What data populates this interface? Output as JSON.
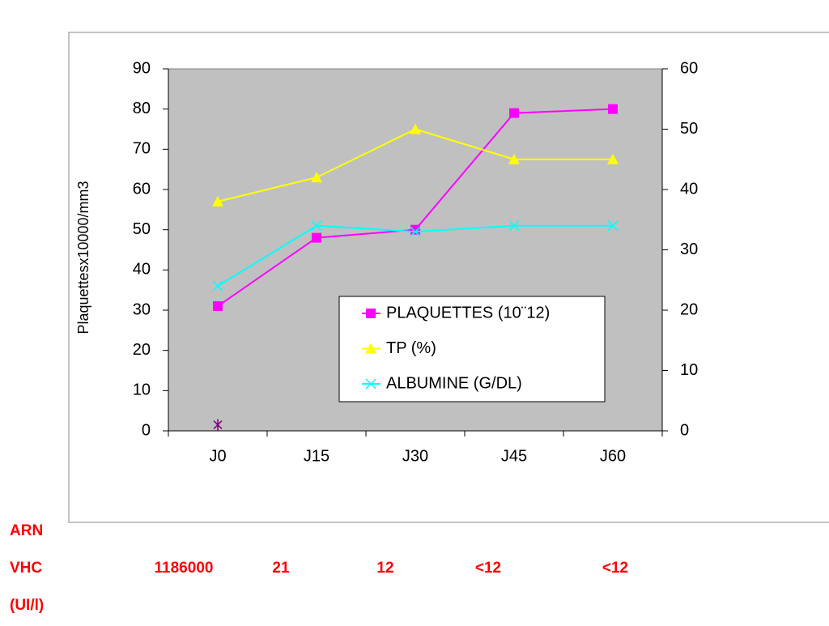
{
  "chart_data": {
    "type": "line",
    "y_label": "Plaquettesx10000/mm3",
    "categories": [
      "J0",
      "J15",
      "J30",
      "J45",
      "J60"
    ],
    "series": [
      {
        "name": "PLAQUETTES (10¨12)",
        "color": "#ff00ff",
        "marker": "square",
        "values": [
          31,
          48,
          50,
          79,
          80
        ]
      },
      {
        "name": "TP (%)",
        "color": "#ffff00",
        "marker": "triangle",
        "values": [
          57,
          63,
          75,
          67.5,
          67.5
        ]
      },
      {
        "name": "ALBUMINE (G/DL)",
        "color": "#00ffff",
        "marker": "x",
        "values": [
          36,
          51,
          49.5,
          51,
          51
        ]
      },
      {
        "color": "#800080",
        "marker": "star",
        "values": [
          1.5,
          null,
          null,
          null,
          null
        ]
      }
    ],
    "ylim": [
      0,
      90
    ],
    "yticks": [
      0,
      10,
      20,
      30,
      40,
      50,
      60,
      70,
      80,
      90
    ],
    "y2lim": [
      0,
      60
    ],
    "y2ticks": [
      0,
      10,
      20,
      30,
      40,
      50,
      60
    ],
    "plot_background": "#c0c0c0"
  },
  "table": {
    "row_labels": [
      "ARN",
      "VHC",
      "(UI/l)"
    ],
    "values": [
      "1186000",
      "21",
      "12",
      "<12",
      "<12"
    ],
    "color": "#ff0000"
  }
}
